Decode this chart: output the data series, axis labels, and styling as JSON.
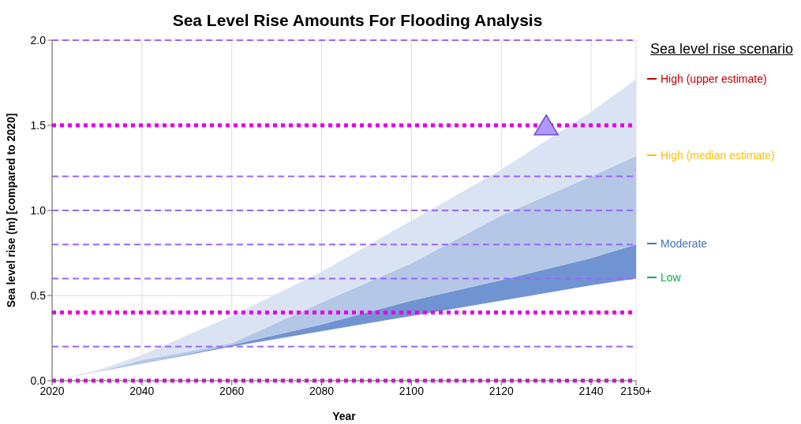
{
  "chart_data": {
    "type": "area",
    "title": "Sea Level Rise Amounts For Flooding Analysis",
    "xlabel": "Year",
    "ylabel": "Sea level rise (m) [compared to 2020]",
    "legend_title": "Sea level rise scenario",
    "legend": "right",
    "grid": true,
    "x": [
      2020,
      2030,
      2040,
      2060,
      2080,
      2100,
      2120,
      2140,
      2150
    ],
    "xlim": [
      2020,
      2150
    ],
    "xticks": [
      2020,
      2040,
      2060,
      2080,
      2100,
      2120,
      2140,
      {
        "value": 2150,
        "label": "2150+"
      }
    ],
    "ylim": [
      0,
      2.0
    ],
    "yticks": [
      {
        "value": 0,
        "label": "0.0"
      },
      0.5,
      {
        "value": 1,
        "label": "1.0"
      },
      1.5,
      {
        "value": 2,
        "label": "2.0"
      }
    ],
    "series": [
      {
        "name": "Low",
        "color": "#ffffff",
        "values": [
          0,
          0.05,
          0.1,
          0.2,
          0.29,
          0.38,
          0.47,
          0.56,
          0.6
        ]
      },
      {
        "name": "Moderate",
        "color": "#7094d2",
        "values": [
          0,
          0.05,
          0.1,
          0.21,
          0.33,
          0.47,
          0.59,
          0.72,
          0.8
        ]
      },
      {
        "name": "High (median estimate)",
        "color": "#b4c7e7",
        "values": [
          0,
          0.05,
          0.12,
          0.22,
          0.46,
          0.69,
          0.97,
          1.2,
          1.32
        ]
      },
      {
        "name": "High (upper estimate)",
        "color": "#dae3f3",
        "values": [
          0,
          0.06,
          0.15,
          0.38,
          0.64,
          0.94,
          1.24,
          1.58,
          1.77
        ]
      },
      {
        "type": "scatter",
        "x": [
          2130
        ],
        "values": [
          1.5
        ],
        "color": "#b197fc",
        "marker": "triangle"
      }
    ],
    "ref_lines": [
      {
        "axis": "y",
        "value": 0.2,
        "color": "#9966ff",
        "line_style": "dashed"
      },
      {
        "axis": "y",
        "value": 0.6,
        "color": "#9966ff",
        "line_style": "dashed"
      },
      {
        "axis": "y",
        "value": 0.8,
        "color": "#9966ff",
        "line_style": "dashed"
      },
      {
        "axis": "y",
        "value": 1.0,
        "color": "#9966ff",
        "line_style": "dashed"
      },
      {
        "axis": "y",
        "value": 1.2,
        "color": "#9966ff",
        "line_style": "dashed"
      },
      {
        "axis": "y",
        "value": 2.0,
        "color": "#9966ff",
        "line_style": "dashed"
      },
      {
        "axis": "y",
        "value": 0,
        "color": "#e600e6",
        "line_style": "dotted"
      },
      {
        "axis": "y",
        "value": 0.4,
        "color": "#e600e6",
        "line_style": "dotted"
      },
      {
        "axis": "y",
        "value": 1.5,
        "color": "#e600e6",
        "line_style": "dotted"
      }
    ]
  }
}
